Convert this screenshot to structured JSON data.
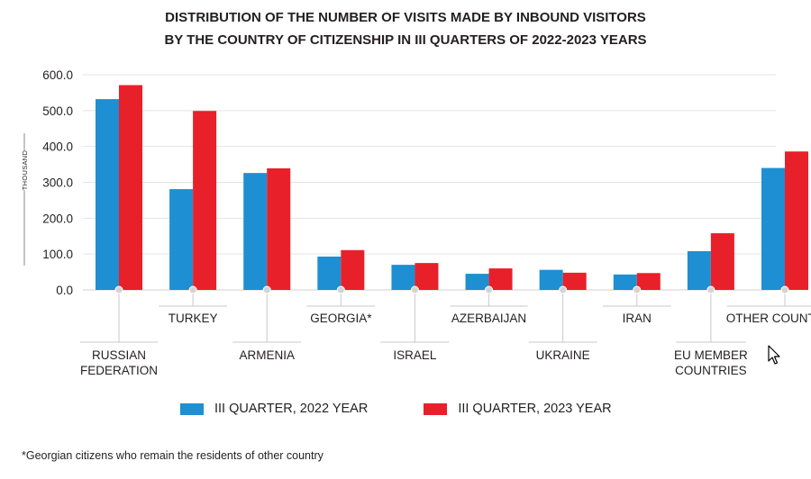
{
  "title_line1": "DISTRIBUTION OF THE NUMBER OF VISITS MADE BY INBOUND VISITORS",
  "title_line2": "BY THE COUNTRY OF CITIZENSHIP IN III QUARTERS OF 2022-2023 YEARS",
  "footnote": "*Georgian citizens who remain the residents of other country",
  "colors": {
    "series_2022": "#1e8fd2",
    "series_2023": "#e8202a",
    "grid": "#e3e3e3",
    "axis_text": "#231f20",
    "connector": "#c9c9c9"
  },
  "chart_data": {
    "type": "bar",
    "title": "DISTRIBUTION OF THE NUMBER OF VISITS MADE BY INBOUND VISITORS BY THE COUNTRY OF CITIZENSHIP IN III QUARTERS OF 2022-2023 YEARS",
    "ylabel": "THOUSAND",
    "xlabel": "",
    "ylim": [
      0,
      600
    ],
    "yticks": [
      "0.0",
      "100.0",
      "200.0",
      "300.0",
      "400.0",
      "500.0",
      "600.0"
    ],
    "grid": true,
    "legend_position": "bottom",
    "categories": [
      [
        "RUSSIAN",
        "FEDERATION"
      ],
      [
        "TURKEY"
      ],
      [
        "ARMENIA"
      ],
      [
        "GEORGIA*"
      ],
      [
        "ISRAEL"
      ],
      [
        "AZERBAIJAN"
      ],
      [
        "UKRAINE"
      ],
      [
        "IRAN"
      ],
      [
        "EU MEMBER",
        "COUNTRIES"
      ],
      [
        "OTHER COUNTRIES"
      ]
    ],
    "series": [
      {
        "name": "III QUARTER, 2022 YEAR",
        "values": [
          532,
          281,
          326,
          93,
          70,
          45,
          56,
          43,
          108,
          340
        ]
      },
      {
        "name": "III QUARTER, 2023 YEAR",
        "values": [
          571,
          499,
          339,
          111,
          75,
          60,
          48,
          47,
          158,
          386
        ]
      }
    ]
  }
}
